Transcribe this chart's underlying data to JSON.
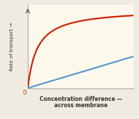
{
  "fig_bg_color": "#f0ebe0",
  "plot_bg_color": "#fdf8ec",
  "red_line_color": "#cc2200",
  "blue_line_color": "#5599cc",
  "spine_color": "#aaaaaa",
  "text_color": "#333333",
  "origin_color": "#cc4400",
  "xlabel_line1": "Concentration difference —",
  "xlabel_line2": "across membrane",
  "ylabel_line1": "Rate of transport →",
  "origin_label": "0",
  "xlim": [
    0,
    10
  ],
  "ylim": [
    0,
    10
  ],
  "vmax": 9.5,
  "km": 0.9,
  "blue_slope": 0.38
}
